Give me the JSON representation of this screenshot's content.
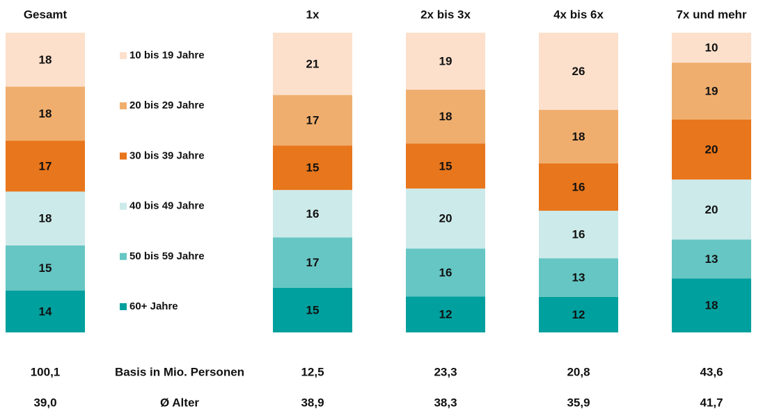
{
  "chart_data": {
    "type": "stacked_bar_100",
    "categories": [
      "Gesamt",
      "1x",
      "2x bis 3x",
      "4x bis 6x",
      "7x und mehr"
    ],
    "series": [
      {
        "name": "10 bis 19 Jahre",
        "color": "#fce0cb",
        "values": [
          18,
          21,
          19,
          26,
          10
        ]
      },
      {
        "name": "20 bis 29 Jahre",
        "color": "#f0ae6e",
        "values": [
          18,
          17,
          18,
          18,
          19
        ]
      },
      {
        "name": "30 bis 39 Jahre",
        "color": "#e8761c",
        "values": [
          17,
          15,
          15,
          16,
          20
        ]
      },
      {
        "name": "40 bis 49 Jahre",
        "color": "#cdeaea",
        "values": [
          18,
          16,
          20,
          16,
          20
        ]
      },
      {
        "name": "50 bis 59 Jahre",
        "color": "#66c6c4",
        "values": [
          15,
          17,
          16,
          13,
          13
        ]
      },
      {
        "name": "60+ Jahre",
        "color": "#00a09e",
        "values": [
          14,
          15,
          12,
          12,
          18
        ]
      }
    ],
    "rows": [
      {
        "label": "Basis in Mio. Personen",
        "values": [
          100.1,
          12.5,
          23.3,
          20.8,
          43.6
        ],
        "value_labels": [
          "100,1",
          "12,5",
          "23,3",
          "20,8",
          "43,6"
        ]
      },
      {
        "label": "Ø Alter",
        "values": [
          39.0,
          38.9,
          38.3,
          35.9,
          41.7
        ],
        "value_labels": [
          "39,0",
          "38,9",
          "38,3",
          "35,9",
          "41,7"
        ]
      }
    ]
  }
}
